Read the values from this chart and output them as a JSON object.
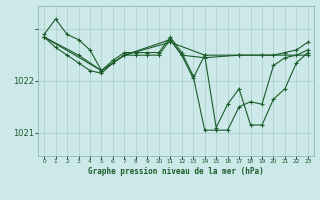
{
  "title": "Graphe pression niveau de la mer (hPa)",
  "bg_color": "#cce8e8",
  "grid_color": "#aacccc",
  "line_color": "#1a5c2a",
  "xlim": [
    -0.5,
    23.5
  ],
  "ylim": [
    1020.55,
    1023.45
  ],
  "yticks": [
    1021,
    1022,
    1023
  ],
  "ytick_labels": [
    "1021",
    "1022",
    ""
  ],
  "xticks": [
    0,
    1,
    2,
    3,
    4,
    5,
    6,
    7,
    8,
    9,
    10,
    11,
    12,
    13,
    14,
    15,
    16,
    17,
    18,
    19,
    20,
    21,
    22,
    23
  ],
  "series1": [
    [
      0,
      1022.9
    ],
    [
      1,
      1023.2
    ],
    [
      2,
      1022.9
    ],
    [
      3,
      1022.8
    ],
    [
      4,
      1022.6
    ],
    [
      5,
      1022.2
    ],
    [
      6,
      1022.4
    ],
    [
      7,
      1022.55
    ],
    [
      8,
      1022.55
    ],
    [
      9,
      1022.55
    ],
    [
      10,
      1022.55
    ],
    [
      11,
      1022.85
    ],
    [
      12,
      1022.55
    ],
    [
      13,
      1022.1
    ],
    [
      14,
      1021.05
    ],
    [
      15,
      1021.05
    ],
    [
      16,
      1021.05
    ],
    [
      17,
      1021.5
    ],
    [
      18,
      1021.6
    ],
    [
      19,
      1021.55
    ],
    [
      20,
      1022.3
    ],
    [
      21,
      1022.45
    ],
    [
      22,
      1022.5
    ],
    [
      23,
      1022.6
    ]
  ],
  "series2": [
    [
      0,
      1022.85
    ],
    [
      1,
      1022.65
    ],
    [
      2,
      1022.5
    ],
    [
      3,
      1022.35
    ],
    [
      4,
      1022.2
    ],
    [
      5,
      1022.15
    ],
    [
      6,
      1022.35
    ],
    [
      7,
      1022.5
    ],
    [
      8,
      1022.5
    ],
    [
      9,
      1022.5
    ],
    [
      10,
      1022.5
    ],
    [
      11,
      1022.8
    ],
    [
      12,
      1022.5
    ],
    [
      13,
      1022.05
    ],
    [
      14,
      1022.5
    ],
    [
      15,
      1021.1
    ],
    [
      16,
      1021.55
    ],
    [
      17,
      1021.85
    ],
    [
      18,
      1021.15
    ],
    [
      19,
      1021.15
    ],
    [
      20,
      1021.65
    ],
    [
      21,
      1021.85
    ],
    [
      22,
      1022.35
    ],
    [
      23,
      1022.55
    ]
  ],
  "series3": [
    [
      0,
      1022.85
    ],
    [
      5,
      1022.2
    ],
    [
      7,
      1022.5
    ],
    [
      11,
      1022.75
    ],
    [
      14,
      1022.5
    ],
    [
      17,
      1022.5
    ],
    [
      19,
      1022.5
    ],
    [
      23,
      1022.5
    ]
  ],
  "series4": [
    [
      0,
      1022.85
    ],
    [
      3,
      1022.5
    ],
    [
      5,
      1022.2
    ],
    [
      7,
      1022.5
    ],
    [
      11,
      1022.8
    ],
    [
      12,
      1022.5
    ],
    [
      14,
      1022.45
    ],
    [
      17,
      1022.5
    ],
    [
      19,
      1022.5
    ],
    [
      20,
      1022.5
    ],
    [
      21,
      1022.55
    ],
    [
      22,
      1022.6
    ],
    [
      23,
      1022.75
    ]
  ]
}
